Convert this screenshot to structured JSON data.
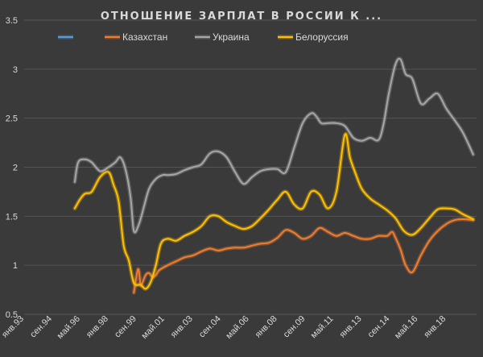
{
  "chart_data": {
    "type": "line",
    "title": "ОТНОШЕНИЕ ЗАРПЛАТ В РОССИИ К ...",
    "xlabel": "",
    "ylabel": "",
    "ylim": [
      0.5,
      3.5
    ],
    "xlim": [
      1993.0,
      2019.8
    ],
    "yticks": [
      "0.5",
      "1",
      "1.5",
      "2",
      "2.5",
      "3",
      "3.5"
    ],
    "xticks": [
      "янв.93",
      "сен.94",
      "май.96",
      "янв.98",
      "сен.99",
      "май.01",
      "янв.03",
      "сен.04",
      "май.06",
      "янв.08",
      "сен.09",
      "май.11",
      "янв.13",
      "сен.14",
      "май.16",
      "янв.18"
    ],
    "xtick_positions": [
      1993.0,
      1994.667,
      1996.333,
      1998.0,
      1999.667,
      2001.333,
      2003.0,
      2004.667,
      2006.333,
      2008.0,
      2009.667,
      2011.333,
      2013.0,
      2014.667,
      2016.333,
      2018.0
    ],
    "grid": "horizontal",
    "legend_position": "top",
    "series": [
      {
        "name": "",
        "color": "#5b9bd5",
        "x": [],
        "y": []
      },
      {
        "name": "Казахстан",
        "color": "#ed7d31",
        "x": [
          1999.5,
          1999.75,
          1999.9,
          2000.0,
          2000.2,
          2000.4,
          2000.6,
          2000.8,
          2001.0,
          2001.5,
          2002.0,
          2002.5,
          2003.0,
          2003.5,
          2004.0,
          2004.5,
          2005.0,
          2005.5,
          2006.0,
          2006.5,
          2007.0,
          2007.5,
          2008.0,
          2008.5,
          2009.0,
          2009.5,
          2010.0,
          2010.5,
          2011.0,
          2011.5,
          2012.0,
          2012.5,
          2013.0,
          2013.5,
          2014.0,
          2014.5,
          2014.8,
          2015.0,
          2015.3,
          2015.6,
          2016.0,
          2016.5,
          2017.0,
          2017.5,
          2018.0,
          2018.5,
          2019.0,
          2019.6
        ],
        "y": [
          0.72,
          0.96,
          0.8,
          0.82,
          0.9,
          0.92,
          0.88,
          0.9,
          0.95,
          1.0,
          1.04,
          1.08,
          1.1,
          1.14,
          1.17,
          1.15,
          1.17,
          1.18,
          1.18,
          1.2,
          1.22,
          1.23,
          1.28,
          1.36,
          1.33,
          1.27,
          1.3,
          1.38,
          1.34,
          1.3,
          1.33,
          1.3,
          1.27,
          1.27,
          1.3,
          1.3,
          1.34,
          1.28,
          1.16,
          1.0,
          0.93,
          1.1,
          1.25,
          1.35,
          1.42,
          1.46,
          1.47,
          1.46
        ]
      },
      {
        "name": "Украина",
        "color": "#a6a6a6",
        "x": [
          1996.0,
          1996.2,
          1996.6,
          1997.0,
          1997.5,
          1998.0,
          1998.4,
          1998.7,
          1999.0,
          1999.3,
          1999.5,
          1999.8,
          2000.1,
          2000.4,
          2000.8,
          2001.2,
          2001.5,
          2002.0,
          2002.5,
          2003.0,
          2003.5,
          2004.0,
          2004.5,
          2005.0,
          2005.5,
          2006.0,
          2006.5,
          2007.0,
          2007.5,
          2008.0,
          2008.5,
          2009.0,
          2009.5,
          2010.0,
          2010.3,
          2010.6,
          2011.0,
          2011.5,
          2012.0,
          2012.5,
          2013.0,
          2013.5,
          2014.0,
          2014.3,
          2014.6,
          2015.0,
          2015.3,
          2015.6,
          2016.0,
          2016.5,
          2017.0,
          2017.5,
          2018.0,
          2018.5,
          2019.0,
          2019.6
        ],
        "y": [
          1.85,
          2.05,
          2.08,
          2.05,
          1.96,
          2.0,
          2.05,
          2.1,
          1.98,
          1.7,
          1.35,
          1.42,
          1.6,
          1.78,
          1.88,
          1.92,
          1.92,
          1.93,
          1.97,
          2.0,
          2.03,
          2.14,
          2.16,
          2.1,
          1.95,
          1.83,
          1.9,
          1.96,
          1.98,
          1.98,
          1.95,
          2.2,
          2.45,
          2.55,
          2.52,
          2.45,
          2.45,
          2.45,
          2.42,
          2.3,
          2.27,
          2.3,
          2.28,
          2.45,
          2.75,
          3.05,
          3.1,
          2.95,
          2.9,
          2.65,
          2.7,
          2.75,
          2.6,
          2.48,
          2.35,
          2.13
        ]
      },
      {
        "name": "Белоруссия",
        "color": "#ffc000",
        "x": [
          1996.0,
          1996.3,
          1996.6,
          1997.0,
          1997.5,
          1998.0,
          1998.3,
          1998.6,
          1998.9,
          1999.2,
          1999.5,
          1999.9,
          2000.2,
          2000.5,
          2000.8,
          2001.1,
          2001.5,
          2002.0,
          2002.5,
          2003.0,
          2003.5,
          2004.0,
          2004.5,
          2005.0,
          2005.5,
          2006.0,
          2006.5,
          2007.0,
          2007.5,
          2008.0,
          2008.5,
          2009.0,
          2009.5,
          2010.0,
          2010.5,
          2011.0,
          2011.5,
          2012.0,
          2012.3,
          2012.6,
          2013.0,
          2013.5,
          2014.0,
          2014.5,
          2015.0,
          2015.5,
          2016.0,
          2016.5,
          2017.0,
          2017.5,
          2018.0,
          2018.5,
          2019.0,
          2019.6
        ],
        "y": [
          1.58,
          1.67,
          1.73,
          1.75,
          1.9,
          1.95,
          1.82,
          1.65,
          1.2,
          1.05,
          0.82,
          0.8,
          0.76,
          0.83,
          1.0,
          1.22,
          1.27,
          1.25,
          1.3,
          1.34,
          1.4,
          1.5,
          1.5,
          1.44,
          1.4,
          1.37,
          1.4,
          1.48,
          1.57,
          1.67,
          1.75,
          1.62,
          1.58,
          1.75,
          1.72,
          1.58,
          1.75,
          2.33,
          2.1,
          1.95,
          1.78,
          1.68,
          1.62,
          1.56,
          1.48,
          1.35,
          1.31,
          1.38,
          1.48,
          1.57,
          1.58,
          1.57,
          1.52,
          1.47
        ]
      }
    ]
  }
}
